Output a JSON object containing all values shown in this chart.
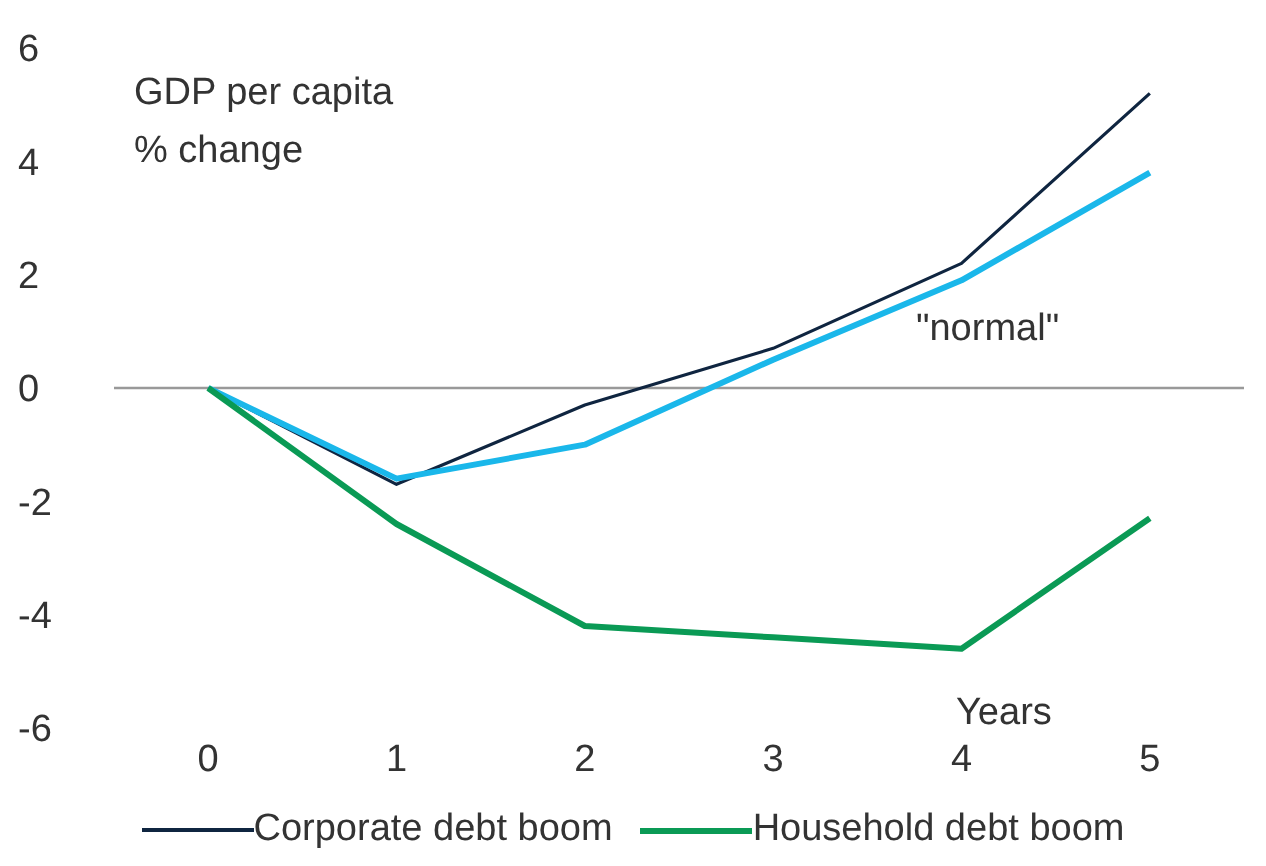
{
  "chart_data": {
    "type": "line",
    "ylabel": "GDP per capita\n% change",
    "xlabel": "Years",
    "x": [
      0,
      1,
      2,
      3,
      4,
      5
    ],
    "xlim": [
      -0.5,
      5.5
    ],
    "xticks": [
      0,
      1,
      2,
      3,
      4,
      5
    ],
    "ylim": [
      -6,
      6
    ],
    "yticks": [
      -6,
      -4,
      -2,
      0,
      2,
      4,
      6
    ],
    "series": [
      {
        "name": "Corporate debt boom",
        "color": "#0f2540",
        "values": [
          0,
          -1.7,
          -0.3,
          0.7,
          2.2,
          5.2
        ]
      },
      {
        "color": "#1ab7ea",
        "values": [
          0,
          -1.6,
          -1.0,
          0.5,
          1.9,
          3.8
        ]
      },
      {
        "name": "Household debt boom",
        "color": "#0a9a55",
        "values": [
          0,
          -2.4,
          -4.2,
          -4.4,
          -4.6,
          -2.3
        ]
      }
    ],
    "ref_lines": [
      {
        "axis": "y",
        "value": 0,
        "color": "#999999"
      }
    ],
    "annotations": [
      "\"normal\""
    ],
    "grid": false,
    "legend": "bottom",
    "marker": "none",
    "line_style": "solid"
  }
}
